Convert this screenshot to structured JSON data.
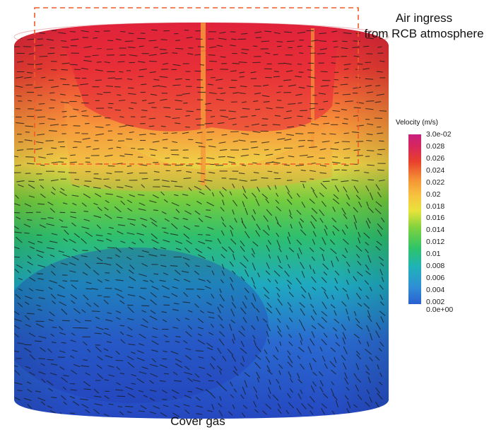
{
  "annotations": {
    "top_line1": "Air ingress",
    "top_line2": "from RCB atmosphere",
    "bottom": "Cover gas"
  },
  "legend": {
    "title": "Velocity (m/s)",
    "max_label": "3.0e-02",
    "min_label": "0.0e+00",
    "ticks": [
      "0.028",
      "0.026",
      "0.024",
      "0.022",
      "0.02",
      "0.018",
      "0.016",
      "0.014",
      "0.012",
      "0.01",
      "0.008",
      "0.006",
      "0.004",
      "0.002"
    ],
    "colors": [
      "#2a5fd1",
      "#2f8fd6",
      "#1fb2b8",
      "#2ec468",
      "#7fd23e",
      "#e8e33a",
      "#f7c23f",
      "#f49535",
      "#e8402c",
      "#d7265c",
      "#c81f7e"
    ]
  },
  "field": {
    "colors": {
      "top": "#e0283a",
      "upper": "#f58a3a",
      "band": "#efcf45",
      "green": "#4cc24a",
      "teal": "#21b2b4",
      "blue": "#2a5fd0",
      "deep": "#2840b8",
      "dashed_box": "#f25a2a"
    }
  }
}
